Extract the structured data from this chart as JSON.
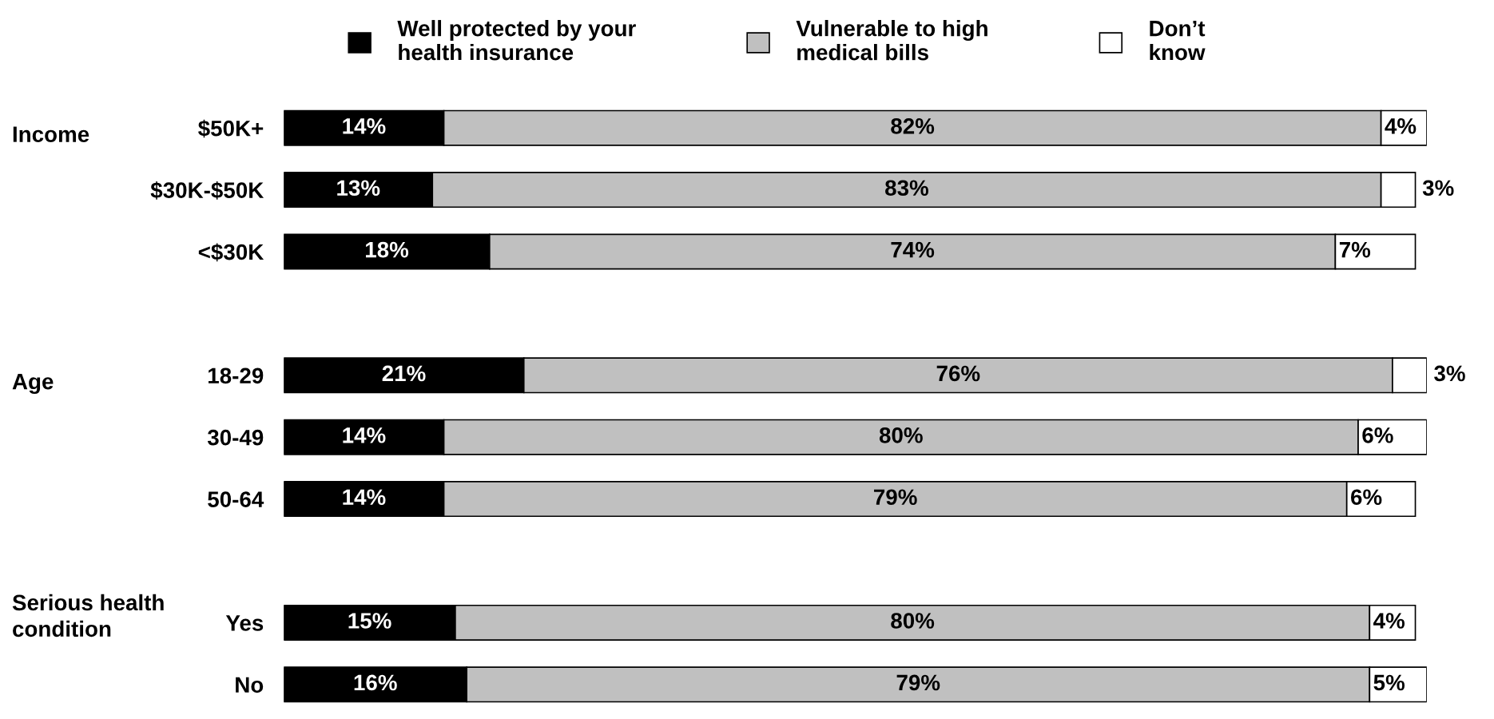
{
  "chart_data": {
    "type": "bar",
    "orientation": "horizontal",
    "stacked": true,
    "legend": "top",
    "grid": false,
    "categories": [
      "$50K+",
      "$30K-$50K",
      "<$30K",
      null,
      "18-29",
      "30-49",
      "50-64",
      null,
      "Yes",
      "No"
    ],
    "series": [
      {
        "name": "Well protected by your\nhealth insurance",
        "color": "#000000",
        "values": [
          14,
          13,
          18,
          null,
          21,
          14,
          14,
          null,
          15,
          16
        ],
        "value_labels": [
          "14%",
          "13%",
          "18%",
          null,
          "21%",
          "14%",
          "14%",
          null,
          "15%",
          "16%"
        ]
      },
      {
        "name": "Vulnerable to high\nmedical bills",
        "color": "#c0c0c0",
        "values": [
          82,
          83,
          74,
          null,
          76,
          80,
          79,
          null,
          80,
          79
        ],
        "value_labels": [
          "82%",
          "83%",
          "74%",
          null,
          "76%",
          "80%",
          "79%",
          null,
          "80%",
          "79%"
        ]
      },
      {
        "name": "Don’t\nknow",
        "color": "#ffffff",
        "values": [
          4,
          3,
          7,
          null,
          3,
          6,
          6,
          null,
          4,
          5
        ],
        "value_labels": [
          "4%",
          "3%",
          "7%",
          null,
          "3%",
          "6%",
          "6%",
          null,
          "4%",
          "5%"
        ]
      }
    ],
    "annotations": [
      "Income",
      "Age",
      "Serious health\ncondition"
    ]
  }
}
